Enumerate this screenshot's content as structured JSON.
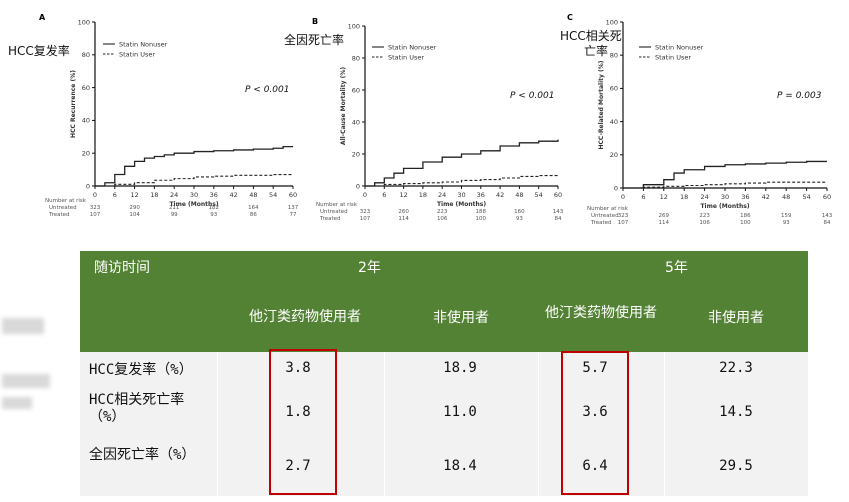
{
  "charts": [
    {
      "panel": "A",
      "cn_label": "HCC复发率",
      "ylabel": "HCC Recurrence (%)",
      "xlabel": "Time (Months)",
      "p_value": "P < 0.001",
      "legend": [
        "Statin Nonuser",
        "Statin User"
      ],
      "yticks": [
        "0",
        "20",
        "40",
        "60",
        "80",
        "100"
      ],
      "xticks": [
        "0",
        "6",
        "12",
        "18",
        "24",
        "30",
        "36",
        "42",
        "48",
        "54",
        "60"
      ],
      "risk_title": "Number at risk",
      "risk_rows": [
        {
          "label": "Untreated",
          "values": [
            "323",
            "290",
            "211",
            "182",
            "164",
            "137"
          ]
        },
        {
          "label": "Treated",
          "values": [
            "107",
            "104",
            "99",
            "93",
            "86",
            "77"
          ]
        }
      ]
    },
    {
      "panel": "B",
      "cn_label": "全因死亡率",
      "ylabel": "All-Cause Mortality (%)",
      "xlabel": "Time (Months)",
      "p_value": "P < 0.001",
      "legend": [
        "Statin Nonuser",
        "Statin User"
      ],
      "yticks": [
        "0",
        "20",
        "40",
        "60",
        "80",
        "100"
      ],
      "xticks": [
        "0",
        "6",
        "12",
        "18",
        "24",
        "30",
        "36",
        "42",
        "48",
        "54",
        "60"
      ],
      "risk_title": "Number at risk",
      "risk_rows": [
        {
          "label": "Untreated",
          "values": [
            "323",
            "260",
            "223",
            "188",
            "160",
            "143"
          ]
        },
        {
          "label": "Treated",
          "values": [
            "107",
            "114",
            "106",
            "100",
            "93",
            "84"
          ]
        }
      ]
    },
    {
      "panel": "C",
      "cn_label_lines": [
        "HCC相关死",
        "亡率"
      ],
      "ylabel": "HCC-Related Mortality (%)",
      "xlabel": "Time (Months)",
      "p_value": "P = 0.003",
      "legend": [
        "Statin Nonuser",
        "Statin User"
      ],
      "yticks": [
        "0",
        "20",
        "40",
        "60",
        "80",
        "100"
      ],
      "xticks": [
        "0",
        "6",
        "12",
        "18",
        "24",
        "30",
        "36",
        "42",
        "48",
        "54",
        "60"
      ],
      "risk_title": "Number at risk",
      "risk_rows": [
        {
          "label": "Untreated",
          "values": [
            "323",
            "269",
            "223",
            "186",
            "159",
            "143"
          ]
        },
        {
          "label": "Treated",
          "values": [
            "107",
            "114",
            "106",
            "100",
            "93",
            "84"
          ]
        }
      ]
    }
  ],
  "chart_data": [
    {
      "type": "line",
      "title": "A",
      "xlabel": "Time (Months)",
      "ylabel": "HCC Recurrence (%)",
      "xlim": [
        0,
        60
      ],
      "ylim": [
        0,
        100
      ],
      "series": [
        {
          "name": "Statin Nonuser",
          "style": "solid",
          "x": [
            0,
            3,
            6,
            9,
            12,
            15,
            18,
            21,
            24,
            30,
            36,
            42,
            48,
            54,
            57,
            60
          ],
          "y": [
            0,
            2,
            7,
            12,
            15,
            17,
            18,
            19,
            20,
            21,
            21.5,
            22,
            22.5,
            23,
            24,
            24
          ]
        },
        {
          "name": "Statin User",
          "style": "dashed",
          "x": [
            0,
            6,
            12,
            18,
            24,
            30,
            36,
            42,
            48,
            54,
            60
          ],
          "y": [
            0,
            1,
            2,
            3.5,
            4.5,
            5.5,
            6,
            6.5,
            6.5,
            7,
            7
          ]
        }
      ]
    },
    {
      "type": "line",
      "title": "B",
      "xlabel": "Time (Months)",
      "ylabel": "All-Cause Mortality (%)",
      "xlim": [
        0,
        60
      ],
      "ylim": [
        0,
        100
      ],
      "series": [
        {
          "name": "Statin Nonuser",
          "style": "solid",
          "x": [
            0,
            3,
            6,
            9,
            12,
            18,
            24,
            30,
            36,
            42,
            48,
            54,
            60
          ],
          "y": [
            0,
            2,
            5,
            8,
            11,
            15,
            18,
            20,
            22,
            25,
            27,
            28,
            29
          ]
        },
        {
          "name": "Statin User",
          "style": "dashed",
          "x": [
            0,
            6,
            12,
            18,
            24,
            30,
            36,
            42,
            48,
            54,
            60
          ],
          "y": [
            0,
            1,
            1.5,
            2,
            2.5,
            3.5,
            4,
            5,
            6,
            6.5,
            7
          ]
        }
      ]
    },
    {
      "type": "line",
      "title": "C",
      "xlabel": "Time (Months)",
      "ylabel": "HCC-Related Mortality (%)",
      "xlim": [
        0,
        60
      ],
      "ylim": [
        0,
        100
      ],
      "series": [
        {
          "name": "Statin Nonuser",
          "style": "solid",
          "x": [
            0,
            6,
            12,
            15,
            18,
            24,
            30,
            36,
            42,
            48,
            54,
            60
          ],
          "y": [
            0,
            2,
            5,
            9,
            11,
            13,
            14,
            14.5,
            15,
            15.5,
            16,
            16
          ]
        },
        {
          "name": "Statin User",
          "style": "dashed",
          "x": [
            0,
            6,
            12,
            18,
            24,
            30,
            36,
            42,
            48,
            54,
            60
          ],
          "y": [
            0,
            0.5,
            1,
            1.5,
            2,
            2.5,
            3,
            3.5,
            3.5,
            3.5,
            3.5
          ]
        }
      ]
    }
  ],
  "table": {
    "header": {
      "col0": "随访时间",
      "year2": "2年",
      "year5": "5年",
      "sub": [
        "他汀类药物使用者",
        "非使用者",
        "他汀类药物使用者",
        "非使用者"
      ]
    },
    "rows": [
      {
        "label": "HCC复发率（%）",
        "values": [
          "3.8",
          "18.9",
          "5.7",
          "22.3"
        ]
      },
      {
        "label": "HCC相关死亡率（%）",
        "values": [
          "1.8",
          "11.0",
          "3.6",
          "14.5"
        ]
      },
      {
        "label": "全因死亡率（%）",
        "values": [
          "2.7",
          "18.4",
          "6.4",
          "29.5"
        ]
      }
    ]
  },
  "colors": {
    "header_bg": "#548235",
    "row_bg": "#f2f2f2",
    "highlight": "#c00000"
  }
}
